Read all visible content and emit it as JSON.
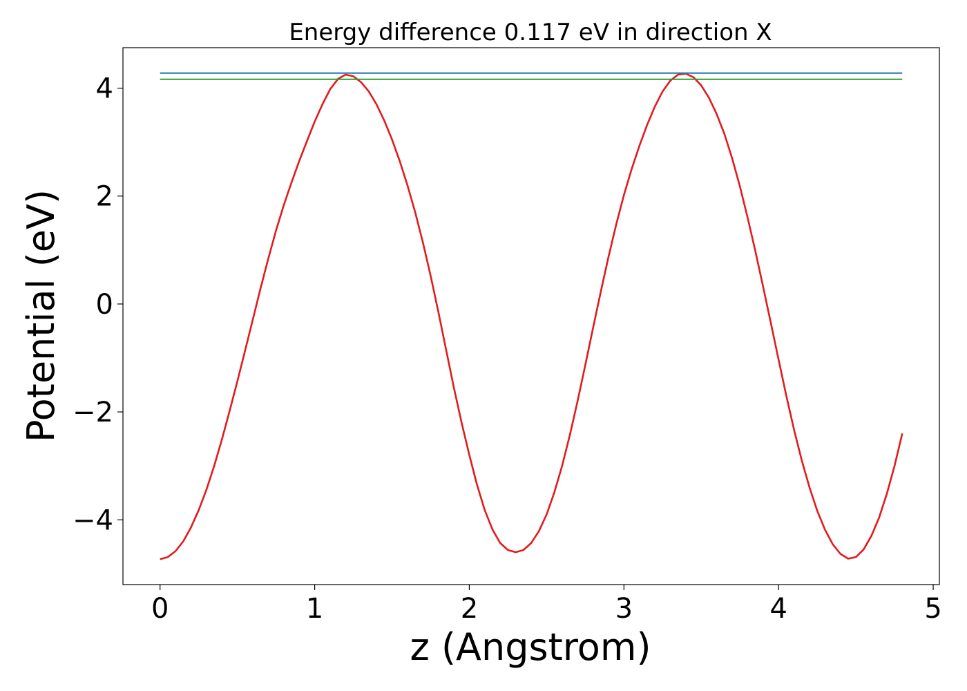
{
  "chart_data": {
    "type": "line",
    "title": "Energy difference 0.117 eV in direction X",
    "xlabel": "z (Angstrom)",
    "ylabel": "Potential (eV)",
    "xlim": [
      -0.24,
      5.04
    ],
    "ylim": [
      -5.2,
      4.75
    ],
    "xticks": [
      0,
      1,
      2,
      3,
      4,
      5
    ],
    "xtick_labels": [
      "0",
      "1",
      "2",
      "3",
      "4",
      "5"
    ],
    "yticks": [
      -4,
      -2,
      0,
      2,
      4
    ],
    "ytick_labels": [
      "−4",
      "−2",
      "0",
      "2",
      "4"
    ],
    "grid": false,
    "legend": "none",
    "series": [
      {
        "color": "#e31a1c",
        "x": [
          0,
          0.05,
          0.1,
          0.15,
          0.2,
          0.25,
          0.3,
          0.35,
          0.4,
          0.45,
          0.5,
          0.55,
          0.6,
          0.65,
          0.7,
          0.75,
          0.8,
          0.85,
          0.9,
          0.95,
          1.0,
          1.05,
          1.1,
          1.15,
          1.2,
          1.25,
          1.3,
          1.35,
          1.4,
          1.45,
          1.5,
          1.55,
          1.6,
          1.65,
          1.7,
          1.75,
          1.8,
          1.85,
          1.9,
          1.95,
          2.0,
          2.05,
          2.1,
          2.15,
          2.2,
          2.25,
          2.3,
          2.35,
          2.4,
          2.45,
          2.5,
          2.55,
          2.6,
          2.65,
          2.7,
          2.75,
          2.8,
          2.85,
          2.9,
          2.95,
          3.0,
          3.05,
          3.1,
          3.15,
          3.2,
          3.25,
          3.3,
          3.35,
          3.4,
          3.45,
          3.5,
          3.55,
          3.6,
          3.65,
          3.7,
          3.75,
          3.8,
          3.85,
          3.9,
          3.95,
          4.0,
          4.05,
          4.1,
          4.15,
          4.2,
          4.25,
          4.3,
          4.35,
          4.4,
          4.45,
          4.5,
          4.55,
          4.6,
          4.65,
          4.7,
          4.75,
          4.8
        ],
        "y": [
          -4.73,
          -4.69,
          -4.58,
          -4.4,
          -4.14,
          -3.82,
          -3.44,
          -3.0,
          -2.51,
          -1.98,
          -1.43,
          -0.86,
          -0.29,
          0.29,
          0.84,
          1.36,
          1.83,
          2.25,
          2.65,
          3.02,
          3.38,
          3.7,
          3.98,
          4.17,
          4.25,
          4.22,
          4.11,
          3.94,
          3.7,
          3.4,
          3.05,
          2.65,
          2.2,
          1.7,
          1.14,
          0.52,
          -0.15,
          -0.85,
          -1.55,
          -2.2,
          -2.8,
          -3.35,
          -3.82,
          -4.18,
          -4.43,
          -4.56,
          -4.6,
          -4.56,
          -4.43,
          -4.21,
          -3.9,
          -3.49,
          -3.0,
          -2.43,
          -1.8,
          -1.13,
          -0.45,
          0.22,
          0.87,
          1.47,
          2.02,
          2.5,
          2.93,
          3.32,
          3.66,
          3.94,
          4.14,
          4.25,
          4.27,
          4.2,
          4.05,
          3.82,
          3.52,
          3.15,
          2.7,
          2.18,
          1.6,
          0.98,
          0.32,
          -0.35,
          -1.03,
          -1.7,
          -2.33,
          -2.9,
          -3.4,
          -3.83,
          -4.18,
          -4.45,
          -4.63,
          -4.72,
          -4.69,
          -4.55,
          -4.3,
          -3.96,
          -3.52,
          -3.0,
          -2.4
        ]
      },
      {
        "color": "#1f77b4",
        "x": [
          0,
          4.8
        ],
        "y": [
          4.28,
          4.28
        ]
      },
      {
        "color": "#2ca02c",
        "x": [
          0,
          4.8
        ],
        "y": [
          4.163,
          4.163
        ]
      }
    ]
  }
}
